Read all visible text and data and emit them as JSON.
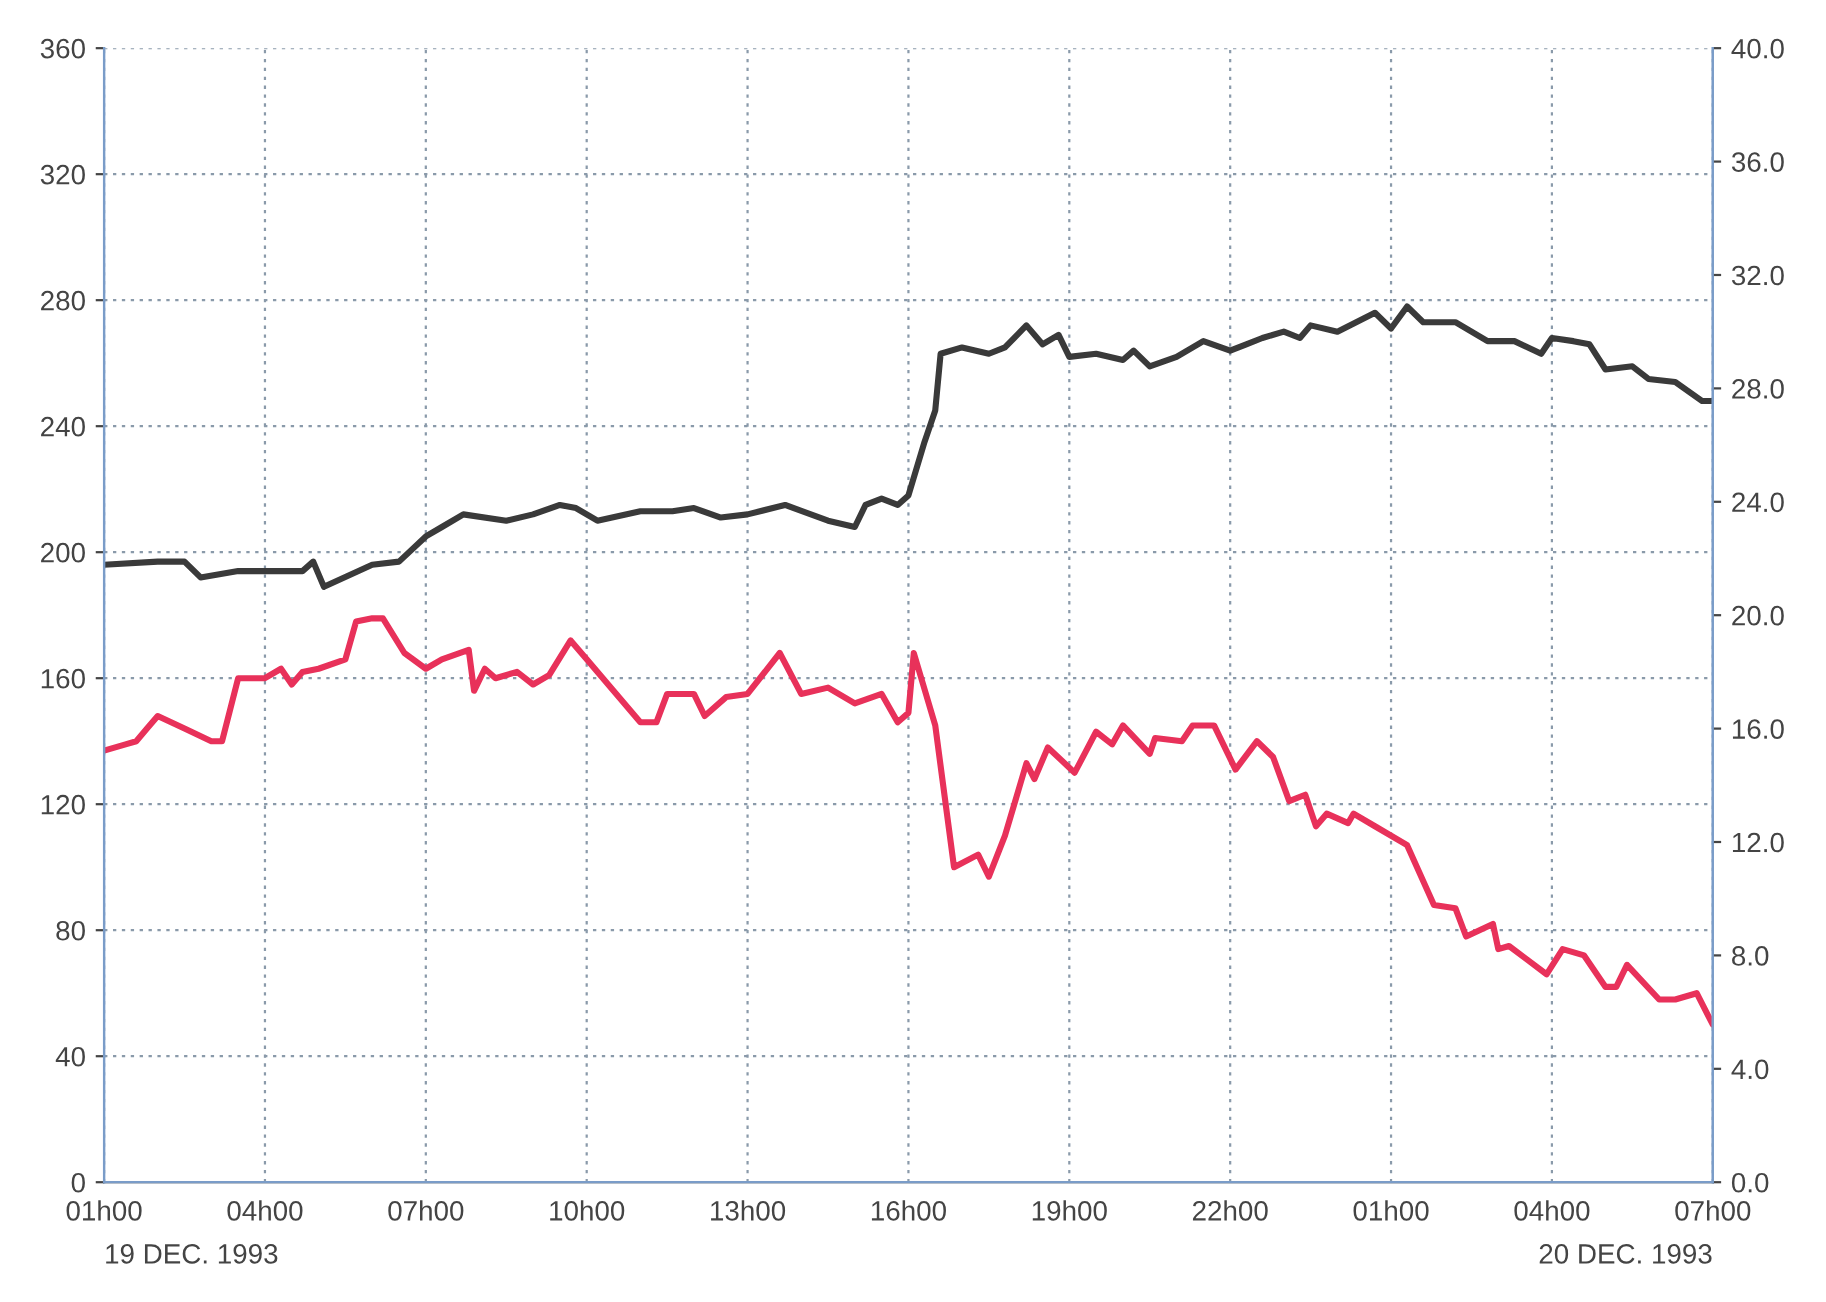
{
  "chart_data": {
    "type": "line",
    "xlim": [
      "1993-12-19T01:00",
      "1993-12-20T07:00"
    ],
    "xticks": [
      {
        "value": "1993-12-19T01:00",
        "label": "01h00"
      },
      {
        "value": "1993-12-19T04:00",
        "label": "04h00"
      },
      {
        "value": "1993-12-19T07:00",
        "label": "07h00"
      },
      {
        "value": "1993-12-19T10:00",
        "label": "10h00"
      },
      {
        "value": "1993-12-19T13:00",
        "label": "13h00"
      },
      {
        "value": "1993-12-19T16:00",
        "label": "16h00"
      },
      {
        "value": "1993-12-19T19:00",
        "label": "19h00"
      },
      {
        "value": "1993-12-19T22:00",
        "label": "22h00"
      },
      {
        "value": "1993-12-20T01:00",
        "label": "01h00"
      },
      {
        "value": "1993-12-20T04:00",
        "label": "04h00"
      },
      {
        "value": "1993-12-20T07:00",
        "label": "07h00"
      }
    ],
    "ylim": [
      0,
      360
    ],
    "yticks": [
      0,
      40,
      80,
      120,
      160,
      200,
      240,
      280,
      320,
      360
    ],
    "y2lim": [
      0,
      40
    ],
    "y2ticks": [
      {
        "value": 0,
        "label": "0.0"
      },
      {
        "value": 4,
        "label": "4.0"
      },
      {
        "value": 8,
        "label": "8.0"
      },
      {
        "value": 12,
        "label": "12.0"
      },
      {
        "value": 16,
        "label": "16.0"
      },
      {
        "value": 20,
        "label": "20.0"
      },
      {
        "value": 24,
        "label": "24.0"
      },
      {
        "value": 28,
        "label": "28.0"
      },
      {
        "value": 32,
        "label": "32.0"
      },
      {
        "value": 36,
        "label": "36.0"
      },
      {
        "value": 40,
        "label": "40.0"
      }
    ],
    "grid": true,
    "line_style": "solid",
    "annotations": [
      "19 DEC. 1993",
      "20 DEC. 1993"
    ],
    "series": [
      {
        "color": "#3a3a3a",
        "x": [
          "1993-12-19T01:00",
          "1993-12-19T02:00",
          "1993-12-19T02:30",
          "1993-12-19T02:48",
          "1993-12-19T03:30",
          "1993-12-19T04:00",
          "1993-12-19T04:42",
          "1993-12-19T04:54",
          "1993-12-19T05:06",
          "1993-12-19T06:00",
          "1993-12-19T06:30",
          "1993-12-19T07:00",
          "1993-12-19T07:18",
          "1993-12-19T07:42",
          "1993-12-19T08:30",
          "1993-12-19T09:00",
          "1993-12-19T09:30",
          "1993-12-19T09:48",
          "1993-12-19T10:12",
          "1993-12-19T11:00",
          "1993-12-19T11:36",
          "1993-12-19T12:00",
          "1993-12-19T12:30",
          "1993-12-19T13:00",
          "1993-12-19T13:42",
          "1993-12-19T14:30",
          "1993-12-19T15:00",
          "1993-12-19T15:12",
          "1993-12-19T15:30",
          "1993-12-19T15:48",
          "1993-12-19T16:00",
          "1993-12-19T16:18",
          "1993-12-19T16:30",
          "1993-12-19T16:36",
          "1993-12-19T17:00",
          "1993-12-19T17:30",
          "1993-12-19T17:48",
          "1993-12-19T18:12",
          "1993-12-19T18:30",
          "1993-12-19T18:48",
          "1993-12-19T19:00",
          "1993-12-19T19:30",
          "1993-12-19T20:00",
          "1993-12-19T20:12",
          "1993-12-19T20:30",
          "1993-12-19T21:00",
          "1993-12-19T21:30",
          "1993-12-19T22:00",
          "1993-12-19T22:18",
          "1993-12-19T22:36",
          "1993-12-19T23:00",
          "1993-12-19T23:18",
          "1993-12-19T23:30",
          "1993-12-20T00:00",
          "1993-12-20T00:42",
          "1993-12-20T01:00",
          "1993-12-20T01:18",
          "1993-12-20T01:36",
          "1993-12-20T02:12",
          "1993-12-20T02:48",
          "1993-12-20T03:18",
          "1993-12-20T03:48",
          "1993-12-20T04:00",
          "1993-12-20T04:24",
          "1993-12-20T04:42",
          "1993-12-20T05:00",
          "1993-12-20T05:30",
          "1993-12-20T05:48",
          "1993-12-20T06:18",
          "1993-12-20T06:48",
          "1993-12-20T07:00"
        ],
        "values": [
          196,
          197,
          197,
          192,
          194,
          194,
          194,
          197,
          189,
          196,
          197,
          205,
          208,
          212,
          210,
          212,
          215,
          214,
          210,
          213,
          213,
          214,
          211,
          212,
          215,
          210,
          208,
          215,
          217,
          215,
          218,
          235,
          245,
          263,
          265,
          263,
          265,
          272,
          266,
          269,
          262,
          263,
          261,
          264,
          259,
          262,
          267,
          264,
          266,
          268,
          270,
          268,
          272,
          270,
          276,
          271,
          278,
          273,
          273,
          267,
          267,
          263,
          268,
          267,
          266,
          258,
          259,
          255,
          254,
          248,
          248
        ]
      },
      {
        "color": "#e8315a",
        "x": [
          "1993-12-19T01:00",
          "1993-12-19T01:24",
          "1993-12-19T01:36",
          "1993-12-19T01:48",
          "1993-12-19T02:00",
          "1993-12-19T02:30",
          "1993-12-19T03:00",
          "1993-12-19T03:12",
          "1993-12-19T03:30",
          "1993-12-19T04:00",
          "1993-12-19T04:18",
          "1993-12-19T04:30",
          "1993-12-19T04:42",
          "1993-12-19T05:00",
          "1993-12-19T05:30",
          "1993-12-19T05:42",
          "1993-12-19T06:00",
          "1993-12-19T06:12",
          "1993-12-19T06:36",
          "1993-12-19T07:00",
          "1993-12-19T07:18",
          "1993-12-19T07:48",
          "1993-12-19T07:54",
          "1993-12-19T08:06",
          "1993-12-19T08:18",
          "1993-12-19T08:42",
          "1993-12-19T09:00",
          "1993-12-19T09:18",
          "1993-12-19T09:42",
          "1993-12-19T10:00",
          "1993-12-19T11:00",
          "1993-12-19T11:18",
          "1993-12-19T11:30",
          "1993-12-19T12:00",
          "1993-12-19T12:12",
          "1993-12-19T12:36",
          "1993-12-19T13:00",
          "1993-12-19T13:36",
          "1993-12-19T14:00",
          "1993-12-19T14:30",
          "1993-12-19T15:00",
          "1993-12-19T15:30",
          "1993-12-19T15:48",
          "1993-12-19T16:00",
          "1993-12-19T16:06",
          "1993-12-19T16:30",
          "1993-12-19T16:51",
          "1993-12-19T17:18",
          "1993-12-19T17:30",
          "1993-12-19T17:48",
          "1993-12-19T18:12",
          "1993-12-19T18:21",
          "1993-12-19T18:36",
          "1993-12-19T19:06",
          "1993-12-19T19:30",
          "1993-12-19T19:48",
          "1993-12-19T20:00",
          "1993-12-19T20:30",
          "1993-12-19T20:36",
          "1993-12-19T21:06",
          "1993-12-19T21:18",
          "1993-12-19T21:42",
          "1993-12-19T22:06",
          "1993-12-19T22:30",
          "1993-12-19T22:48",
          "1993-12-19T23:06",
          "1993-12-19T23:24",
          "1993-12-19T23:36",
          "1993-12-19T23:48",
          "1993-12-20T00:12",
          "1993-12-20T00:18",
          "1993-12-20T00:42",
          "1993-12-20T01:18",
          "1993-12-20T01:48",
          "1993-12-20T02:12",
          "1993-12-20T02:24",
          "1993-12-20T02:54",
          "1993-12-20T03:00",
          "1993-12-20T03:12",
          "1993-12-20T03:54",
          "1993-12-20T04:12",
          "1993-12-20T04:36",
          "1993-12-20T05:00",
          "1993-12-20T05:12",
          "1993-12-20T05:24",
          "1993-12-20T06:00",
          "1993-12-20T06:18",
          "1993-12-20T06:42",
          "1993-12-20T07:00"
        ],
        "values": [
          137,
          139,
          140,
          144,
          148,
          144,
          140,
          140,
          160,
          160,
          163,
          158,
          162,
          163,
          166,
          178,
          179,
          179,
          168,
          163,
          166,
          169,
          156,
          163,
          160,
          162,
          158,
          161,
          172,
          166,
          146,
          146,
          155,
          155,
          148,
          154,
          155,
          168,
          155,
          157,
          152,
          155,
          146,
          149,
          168,
          145,
          100,
          104,
          97,
          110,
          133,
          128,
          138,
          130,
          143,
          139,
          145,
          136,
          141,
          140,
          145,
          145,
          131,
          140,
          135,
          121,
          123,
          113,
          117,
          114,
          117,
          113,
          107,
          88,
          87,
          78,
          82,
          74,
          75,
          66,
          74,
          72,
          62,
          62,
          69,
          58,
          58,
          60,
          50
        ]
      }
    ]
  }
}
